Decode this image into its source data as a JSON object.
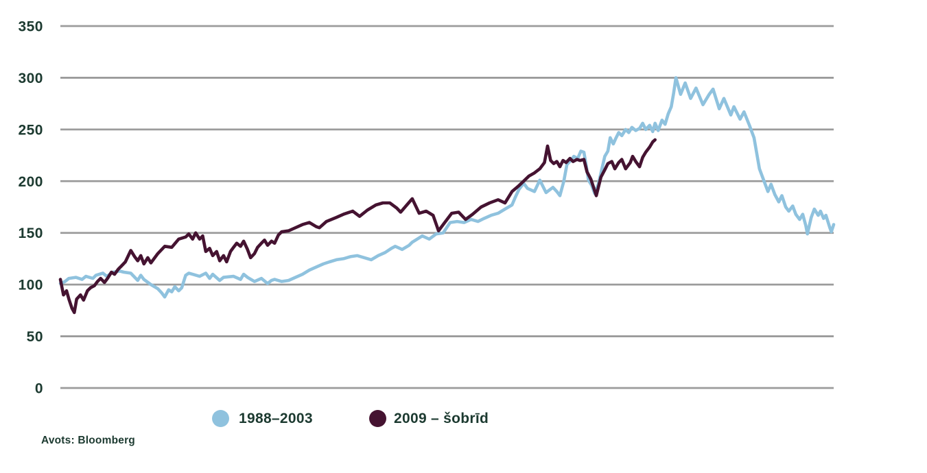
{
  "chart": {
    "source_note": "Avots: Bloomberg",
    "legend": [
      {
        "label": "1988–2003"
      },
      {
        "label": "2009 – šobrīd"
      }
    ]
  },
  "chart_data": {
    "type": "line",
    "title": "",
    "xlabel": "",
    "ylabel": "",
    "ylim": [
      0,
      350
    ],
    "yticks": [
      0,
      50,
      100,
      150,
      200,
      250,
      300,
      350
    ],
    "x_unit": "percent of plot width (no x tick labels shown in chart)",
    "grid": "horizontal gridlines only",
    "legend_position": "bottom",
    "grid_color": "#9B9B9B",
    "text_color": "#1C3A30",
    "source": "Avots: Bloomberg",
    "series": [
      {
        "name": "1988–2003",
        "color": "#8FC2DE",
        "points": [
          [
            0,
            101
          ],
          [
            0.6,
            103
          ],
          [
            1.1,
            106
          ],
          [
            2,
            107
          ],
          [
            2.8,
            105
          ],
          [
            3.3,
            108
          ],
          [
            4.2,
            106
          ],
          [
            4.6,
            109
          ],
          [
            5.5,
            111
          ],
          [
            6,
            108
          ],
          [
            6.8,
            112
          ],
          [
            7.7,
            113
          ],
          [
            8.2,
            112
          ],
          [
            9.1,
            111
          ],
          [
            10,
            104
          ],
          [
            10.4,
            109
          ],
          [
            10.8,
            105
          ],
          [
            11.7,
            100
          ],
          [
            12.6,
            96
          ],
          [
            13.1,
            92
          ],
          [
            13.5,
            88
          ],
          [
            14,
            95
          ],
          [
            14.4,
            93
          ],
          [
            14.8,
            98
          ],
          [
            15.3,
            94
          ],
          [
            15.7,
            97
          ],
          [
            16.2,
            109
          ],
          [
            16.6,
            111
          ],
          [
            17.1,
            110
          ],
          [
            18,
            108
          ],
          [
            18.8,
            111
          ],
          [
            19.3,
            106
          ],
          [
            19.7,
            110
          ],
          [
            20.6,
            104
          ],
          [
            21.1,
            107
          ],
          [
            22.4,
            108
          ],
          [
            23.3,
            105
          ],
          [
            23.7,
            110
          ],
          [
            24.2,
            107
          ],
          [
            25.1,
            103
          ],
          [
            26,
            106
          ],
          [
            26.8,
            101
          ],
          [
            27.3,
            104
          ],
          [
            27.7,
            105
          ],
          [
            28.6,
            103
          ],
          [
            29.5,
            104
          ],
          [
            30.4,
            107
          ],
          [
            31.3,
            110
          ],
          [
            32.2,
            114
          ],
          [
            33.1,
            117
          ],
          [
            34,
            120
          ],
          [
            34.8,
            122
          ],
          [
            35.7,
            124
          ],
          [
            36.6,
            125
          ],
          [
            37.5,
            127
          ],
          [
            38.4,
            128
          ],
          [
            39.3,
            126
          ],
          [
            40.2,
            124
          ],
          [
            41.1,
            128
          ],
          [
            42,
            131
          ],
          [
            42.8,
            135
          ],
          [
            43.3,
            137
          ],
          [
            44.2,
            134
          ],
          [
            45.1,
            138
          ],
          [
            45.5,
            141
          ],
          [
            46.8,
            147
          ],
          [
            47.7,
            144
          ],
          [
            48.6,
            149
          ],
          [
            49.5,
            150
          ],
          [
            50.4,
            160
          ],
          [
            51.3,
            161
          ],
          [
            52.2,
            160
          ],
          [
            53.1,
            163
          ],
          [
            54,
            161
          ],
          [
            54.8,
            164
          ],
          [
            55.7,
            167
          ],
          [
            56.6,
            169
          ],
          [
            57.5,
            173
          ],
          [
            58.4,
            177
          ],
          [
            58.8,
            184
          ],
          [
            59.3,
            192
          ],
          [
            59.9,
            198
          ],
          [
            60.4,
            193
          ],
          [
            61.3,
            190
          ],
          [
            62,
            201
          ],
          [
            62.8,
            189
          ],
          [
            63.7,
            194
          ],
          [
            64.2,
            190
          ],
          [
            64.6,
            186
          ],
          [
            65.1,
            200
          ],
          [
            65.5,
            216
          ],
          [
            66,
            220
          ],
          [
            66.4,
            224
          ],
          [
            66.9,
            222
          ],
          [
            67.3,
            229
          ],
          [
            67.7,
            228
          ],
          [
            68,
            215
          ],
          [
            68.3,
            201
          ],
          [
            68.7,
            196
          ],
          [
            69.1,
            188
          ],
          [
            69.6,
            198
          ],
          [
            70,
            211
          ],
          [
            70.4,
            224
          ],
          [
            70.8,
            229
          ],
          [
            71.1,
            242
          ],
          [
            71.5,
            236
          ],
          [
            71.8,
            241
          ],
          [
            72.2,
            247
          ],
          [
            72.6,
            244
          ],
          [
            73.1,
            250
          ],
          [
            73.5,
            247
          ],
          [
            73.9,
            252
          ],
          [
            74.4,
            249
          ],
          [
            74.9,
            251
          ],
          [
            75.3,
            256
          ],
          [
            75.7,
            250
          ],
          [
            76.2,
            254
          ],
          [
            76.6,
            248
          ],
          [
            76.9,
            256
          ],
          [
            77.3,
            249
          ],
          [
            77.8,
            259
          ],
          [
            78.2,
            255
          ],
          [
            78.6,
            265
          ],
          [
            79,
            272
          ],
          [
            79.3,
            285
          ],
          [
            79.6,
            300
          ],
          [
            80.2,
            284
          ],
          [
            80.8,
            295
          ],
          [
            81.5,
            280
          ],
          [
            82.2,
            290
          ],
          [
            83.1,
            274
          ],
          [
            83.9,
            284
          ],
          [
            84.4,
            289
          ],
          [
            85.2,
            270
          ],
          [
            85.8,
            280
          ],
          [
            86.7,
            264
          ],
          [
            87.1,
            272
          ],
          [
            87.9,
            260
          ],
          [
            88.4,
            267
          ],
          [
            89.1,
            254
          ],
          [
            89.7,
            242
          ],
          [
            90.4,
            212
          ],
          [
            90.8,
            204
          ],
          [
            91.5,
            190
          ],
          [
            91.9,
            197
          ],
          [
            92.4,
            187
          ],
          [
            92.9,
            180
          ],
          [
            93.3,
            186
          ],
          [
            93.8,
            175
          ],
          [
            94.2,
            171
          ],
          [
            94.7,
            176
          ],
          [
            95.1,
            168
          ],
          [
            95.6,
            163
          ],
          [
            96,
            168
          ],
          [
            96.4,
            157
          ],
          [
            96.6,
            149
          ],
          [
            97.1,
            165
          ],
          [
            97.5,
            173
          ],
          [
            98,
            167
          ],
          [
            98.3,
            171
          ],
          [
            98.7,
            164
          ],
          [
            99,
            167
          ],
          [
            99.5,
            155
          ],
          [
            99.7,
            151
          ],
          [
            100,
            158
          ]
        ]
      },
      {
        "name": "2009 – šobrīd",
        "color": "#451331",
        "points": [
          [
            0,
            105
          ],
          [
            0.4,
            90
          ],
          [
            0.8,
            94
          ],
          [
            1.1,
            86
          ],
          [
            1.5,
            77
          ],
          [
            1.8,
            73
          ],
          [
            2.1,
            86
          ],
          [
            2.6,
            90
          ],
          [
            3,
            85
          ],
          [
            3.5,
            94
          ],
          [
            3.9,
            97
          ],
          [
            4.4,
            99
          ],
          [
            4.8,
            103
          ],
          [
            5.2,
            106
          ],
          [
            5.7,
            102
          ],
          [
            6.1,
            106
          ],
          [
            6.6,
            112
          ],
          [
            7,
            110
          ],
          [
            7.5,
            115
          ],
          [
            7.9,
            118
          ],
          [
            8.4,
            122
          ],
          [
            9.1,
            133
          ],
          [
            9.6,
            127
          ],
          [
            10,
            123
          ],
          [
            10.4,
            128
          ],
          [
            10.8,
            120
          ],
          [
            11.3,
            126
          ],
          [
            11.7,
            121
          ],
          [
            12.6,
            130
          ],
          [
            13.5,
            137
          ],
          [
            14.4,
            136
          ],
          [
            15.3,
            144
          ],
          [
            16.2,
            146
          ],
          [
            16.6,
            149
          ],
          [
            17.1,
            144
          ],
          [
            17.5,
            150
          ],
          [
            18,
            144
          ],
          [
            18.4,
            147
          ],
          [
            18.8,
            132
          ],
          [
            19.3,
            135
          ],
          [
            19.7,
            128
          ],
          [
            20.2,
            132
          ],
          [
            20.6,
            123
          ],
          [
            21.1,
            128
          ],
          [
            21.5,
            122
          ],
          [
            22,
            132
          ],
          [
            22.4,
            136
          ],
          [
            22.8,
            140
          ],
          [
            23.3,
            137
          ],
          [
            23.7,
            142
          ],
          [
            24.2,
            134
          ],
          [
            24.6,
            126
          ],
          [
            25.1,
            130
          ],
          [
            25.5,
            136
          ],
          [
            26,
            140
          ],
          [
            26.4,
            143
          ],
          [
            26.8,
            138
          ],
          [
            27.3,
            142
          ],
          [
            27.7,
            140
          ],
          [
            28.2,
            148
          ],
          [
            28.6,
            151
          ],
          [
            29.5,
            152
          ],
          [
            30.4,
            155
          ],
          [
            31.3,
            158
          ],
          [
            32.2,
            160
          ],
          [
            33.1,
            156
          ],
          [
            33.5,
            155
          ],
          [
            34.4,
            161
          ],
          [
            35.7,
            165
          ],
          [
            36.6,
            168
          ],
          [
            37.8,
            171
          ],
          [
            38.7,
            166
          ],
          [
            39.7,
            172
          ],
          [
            40.8,
            177
          ],
          [
            41.7,
            179
          ],
          [
            42.6,
            179
          ],
          [
            43.5,
            174
          ],
          [
            44,
            170
          ],
          [
            44.8,
            177
          ],
          [
            45.5,
            183
          ],
          [
            46.4,
            169
          ],
          [
            47.3,
            171
          ],
          [
            48.2,
            167
          ],
          [
            48.9,
            152
          ],
          [
            49.7,
            160
          ],
          [
            50.6,
            169
          ],
          [
            51.5,
            170
          ],
          [
            52.4,
            163
          ],
          [
            53.3,
            168
          ],
          [
            54.4,
            175
          ],
          [
            55.5,
            179
          ],
          [
            56.6,
            182
          ],
          [
            57.5,
            179
          ],
          [
            58.4,
            190
          ],
          [
            59.2,
            195
          ],
          [
            59.9,
            200
          ],
          [
            60.6,
            205
          ],
          [
            61.3,
            208
          ],
          [
            62,
            212
          ],
          [
            62.6,
            218
          ],
          [
            63,
            234
          ],
          [
            63.4,
            220
          ],
          [
            63.8,
            217
          ],
          [
            64.2,
            219
          ],
          [
            64.6,
            214
          ],
          [
            65,
            220
          ],
          [
            65.4,
            218
          ],
          [
            65.9,
            222
          ],
          [
            66.3,
            219
          ],
          [
            66.8,
            221
          ],
          [
            67.2,
            220
          ],
          [
            67.7,
            221
          ],
          [
            68.1,
            209
          ],
          [
            68.6,
            202
          ],
          [
            69.3,
            186
          ],
          [
            69.9,
            204
          ],
          [
            70.4,
            211
          ],
          [
            70.8,
            217
          ],
          [
            71.3,
            219
          ],
          [
            71.7,
            212
          ],
          [
            72.2,
            218
          ],
          [
            72.6,
            221
          ],
          [
            73.1,
            212
          ],
          [
            73.7,
            218
          ],
          [
            74,
            224
          ],
          [
            74.4,
            219
          ],
          [
            74.9,
            214
          ],
          [
            75.3,
            223
          ],
          [
            75.7,
            228
          ],
          [
            76.2,
            233
          ],
          [
            76.6,
            238
          ],
          [
            76.9,
            240
          ]
        ]
      }
    ]
  }
}
